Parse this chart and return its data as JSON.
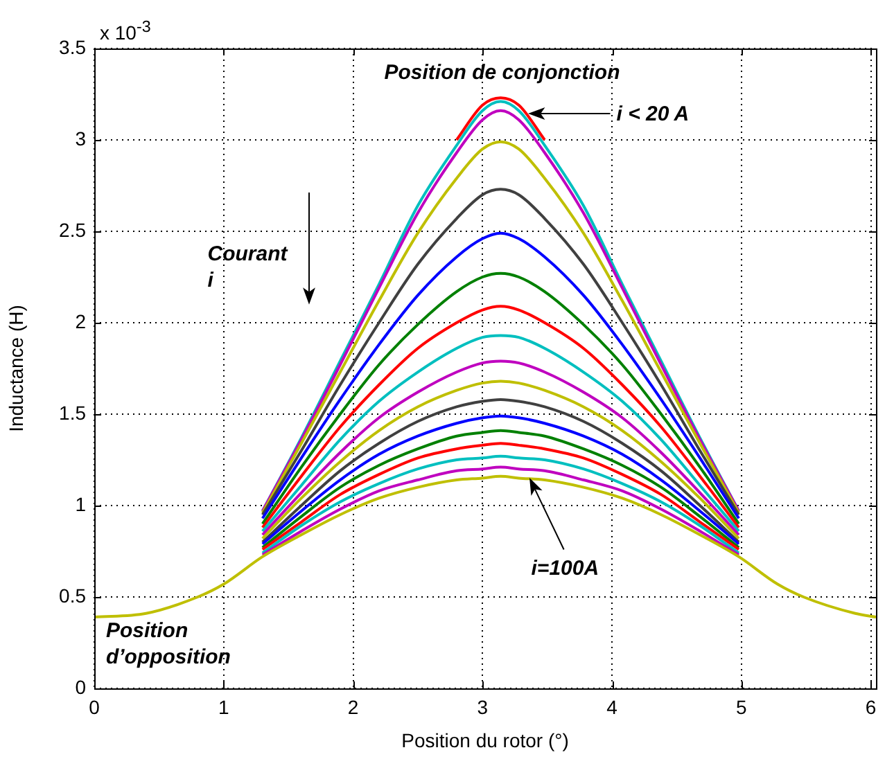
{
  "chart_data": {
    "type": "line",
    "xlabel": "Position du rotor (°)",
    "ylabel": "Inductance (H)",
    "x": [
      0,
      0.4,
      0.8,
      1.0,
      1.3,
      1.6,
      1.9,
      2.2,
      2.5,
      2.8,
      3.0,
      3.14,
      3.28,
      3.48,
      3.78,
      4.08,
      4.38,
      4.68,
      4.98,
      5.28,
      5.48,
      5.88,
      6.04
    ],
    "series": [
      {
        "color": "#ff0000",
        "values": [
          null,
          null,
          null,
          null,
          null,
          null,
          null,
          null,
          null,
          3.0,
          3.19,
          3.23,
          3.19,
          3.0,
          null,
          null,
          null,
          null,
          null,
          null,
          null,
          null,
          null
        ]
      },
      {
        "color": "#00bfbf",
        "values": [
          null,
          null,
          null,
          null,
          0.97,
          1.37,
          1.79,
          2.21,
          2.64,
          2.97,
          3.16,
          3.21,
          3.16,
          2.97,
          2.64,
          2.21,
          1.79,
          1.37,
          0.97,
          null,
          null,
          null,
          null
        ]
      },
      {
        "color": "#bf00bf",
        "values": [
          null,
          null,
          null,
          null,
          0.97,
          1.36,
          1.77,
          2.19,
          2.6,
          2.93,
          3.11,
          3.16,
          3.11,
          2.93,
          2.6,
          2.19,
          1.77,
          1.36,
          0.97,
          null,
          null,
          null,
          null
        ]
      },
      {
        "color": "#bfbf00",
        "values": [
          null,
          null,
          null,
          null,
          0.96,
          1.34,
          1.73,
          2.12,
          2.49,
          2.79,
          2.95,
          2.99,
          2.95,
          2.79,
          2.49,
          2.12,
          1.73,
          1.34,
          0.96,
          null,
          null,
          null,
          null
        ]
      },
      {
        "color": "#404040",
        "values": [
          null,
          null,
          null,
          null,
          0.95,
          1.3,
          1.66,
          2.0,
          2.32,
          2.57,
          2.7,
          2.73,
          2.7,
          2.57,
          2.32,
          2.0,
          1.66,
          1.3,
          0.95,
          null,
          null,
          null,
          null
        ]
      },
      {
        "color": "#0000ff",
        "values": [
          null,
          null,
          null,
          null,
          0.93,
          1.26,
          1.58,
          1.88,
          2.15,
          2.36,
          2.46,
          2.49,
          2.46,
          2.36,
          2.15,
          1.88,
          1.58,
          1.26,
          0.93,
          null,
          null,
          null,
          null
        ]
      },
      {
        "color": "#008000",
        "values": [
          null,
          null,
          null,
          null,
          0.9,
          1.21,
          1.5,
          1.77,
          1.99,
          2.17,
          2.25,
          2.27,
          2.25,
          2.17,
          1.99,
          1.77,
          1.5,
          1.21,
          0.9,
          null,
          null,
          null,
          null
        ]
      },
      {
        "color": "#ff0000",
        "values": [
          null,
          null,
          null,
          null,
          0.88,
          1.16,
          1.43,
          1.66,
          1.86,
          2.0,
          2.07,
          2.09,
          2.07,
          2.0,
          1.86,
          1.66,
          1.43,
          1.16,
          0.88,
          null,
          null,
          null,
          null
        ]
      },
      {
        "color": "#00bfbf",
        "values": [
          null,
          null,
          null,
          null,
          0.86,
          1.11,
          1.36,
          1.57,
          1.73,
          1.86,
          1.92,
          1.93,
          1.92,
          1.86,
          1.73,
          1.57,
          1.36,
          1.11,
          0.86,
          null,
          null,
          null,
          null
        ]
      },
      {
        "color": "#bf00bf",
        "values": [
          null,
          null,
          null,
          null,
          0.84,
          1.07,
          1.29,
          1.48,
          1.62,
          1.73,
          1.78,
          1.79,
          1.78,
          1.73,
          1.62,
          1.48,
          1.29,
          1.07,
          0.84,
          null,
          null,
          null,
          null
        ]
      },
      {
        "color": "#bfbf00",
        "values": [
          null,
          null,
          null,
          null,
          0.82,
          1.04,
          1.24,
          1.41,
          1.54,
          1.63,
          1.67,
          1.68,
          1.67,
          1.63,
          1.54,
          1.41,
          1.24,
          1.04,
          0.82,
          null,
          null,
          null,
          null
        ]
      },
      {
        "color": "#404040",
        "values": [
          null,
          null,
          null,
          null,
          0.8,
          1.0,
          1.19,
          1.34,
          1.46,
          1.54,
          1.57,
          1.58,
          1.57,
          1.54,
          1.46,
          1.34,
          1.19,
          1.0,
          0.8,
          null,
          null,
          null,
          null
        ]
      },
      {
        "color": "#0000ff",
        "values": [
          null,
          null,
          null,
          null,
          0.79,
          0.97,
          1.14,
          1.28,
          1.38,
          1.45,
          1.48,
          1.49,
          1.48,
          1.45,
          1.38,
          1.28,
          1.14,
          0.97,
          0.79,
          null,
          null,
          null,
          null
        ]
      },
      {
        "color": "#008000",
        "values": [
          null,
          null,
          null,
          null,
          0.77,
          0.94,
          1.1,
          1.22,
          1.31,
          1.38,
          1.4,
          1.41,
          1.4,
          1.38,
          1.31,
          1.22,
          1.1,
          0.94,
          0.77,
          null,
          null,
          null,
          null
        ]
      },
      {
        "color": "#ff0000",
        "values": [
          null,
          null,
          null,
          null,
          0.76,
          0.91,
          1.06,
          1.17,
          1.26,
          1.31,
          1.33,
          1.34,
          1.33,
          1.31,
          1.26,
          1.17,
          1.06,
          0.91,
          0.76,
          null,
          null,
          null,
          null
        ]
      },
      {
        "color": "#00bfbf",
        "values": [
          null,
          null,
          null,
          null,
          0.74,
          0.89,
          1.02,
          1.12,
          1.2,
          1.25,
          1.26,
          1.27,
          1.26,
          1.25,
          1.2,
          1.12,
          1.02,
          0.89,
          0.74,
          null,
          null,
          null,
          null
        ]
      },
      {
        "color": "#bf00bf",
        "values": [
          null,
          null,
          null,
          null,
          0.73,
          0.86,
          0.98,
          1.08,
          1.14,
          1.19,
          1.2,
          1.21,
          1.2,
          1.19,
          1.14,
          1.08,
          0.98,
          0.86,
          0.73,
          null,
          null,
          null,
          null
        ]
      },
      {
        "color": "#bfbf00",
        "values": [
          0.39,
          0.41,
          0.5,
          0.57,
          0.72,
          0.84,
          0.95,
          1.04,
          1.1,
          1.14,
          1.15,
          1.16,
          1.15,
          1.14,
          1.1,
          1.04,
          0.95,
          0.84,
          0.72,
          0.57,
          0.5,
          0.41,
          0.39
        ]
      }
    ],
    "xlim": [
      0,
      6.04
    ],
    "xticks": [
      0,
      1,
      2,
      3,
      4,
      5,
      6
    ],
    "ylim": [
      0,
      3.5
    ],
    "yticks": [
      0,
      0.5,
      1,
      1.5,
      2,
      2.5,
      3,
      3.5
    ],
    "grid": true,
    "legend": false,
    "marker": "none",
    "line_style": "solid",
    "annotations": [
      "x 10$^{-3}$",
      "Position de conjonction",
      "i < 20 A",
      "Courant\ni",
      "i=100A",
      "Position\nd’opposition"
    ]
  }
}
